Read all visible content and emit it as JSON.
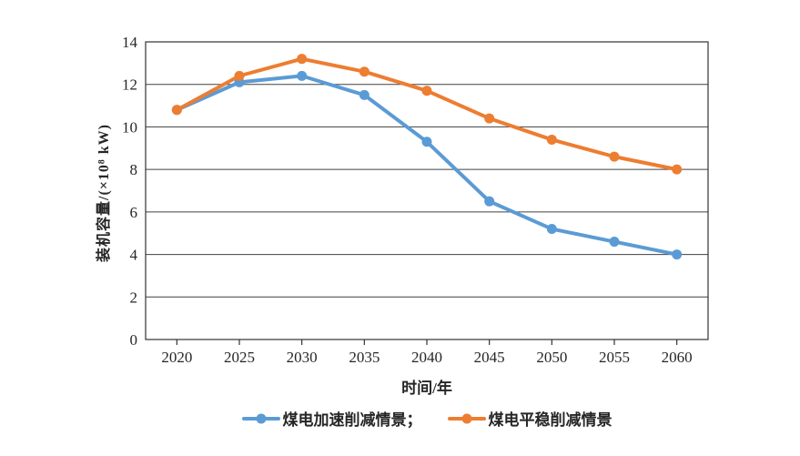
{
  "chart_data": {
    "type": "line",
    "categories": [
      "2020",
      "2025",
      "2030",
      "2035",
      "2040",
      "2045",
      "2050",
      "2055",
      "2060"
    ],
    "series": [
      {
        "name": "煤电加速削减情景",
        "color": "#5B9BD5",
        "values": [
          10.8,
          12.1,
          12.4,
          11.5,
          9.3,
          6.5,
          5.2,
          4.6,
          4.0
        ]
      },
      {
        "name": "煤电平稳削减情景",
        "color": "#ED7D31",
        "values": [
          10.8,
          12.4,
          13.2,
          12.6,
          11.7,
          10.4,
          9.4,
          8.6,
          8.0
        ]
      }
    ],
    "legend_labels": [
      "煤电加速削减情景；",
      "煤电平稳削减情景"
    ],
    "xlabel": "时间/年",
    "ylabel": "装机容量/(×10⁸ kW)",
    "ylim": [
      0,
      14
    ],
    "ytick_step": 2,
    "yticks": [
      "0",
      "2",
      "4",
      "6",
      "8",
      "10",
      "12",
      "14"
    ],
    "grid": "horizontal",
    "legend_position": "bottom",
    "colors": {
      "axis_line": "#333333",
      "grid_line": "#404040",
      "text": "#262626",
      "background": "#ffffff"
    }
  }
}
